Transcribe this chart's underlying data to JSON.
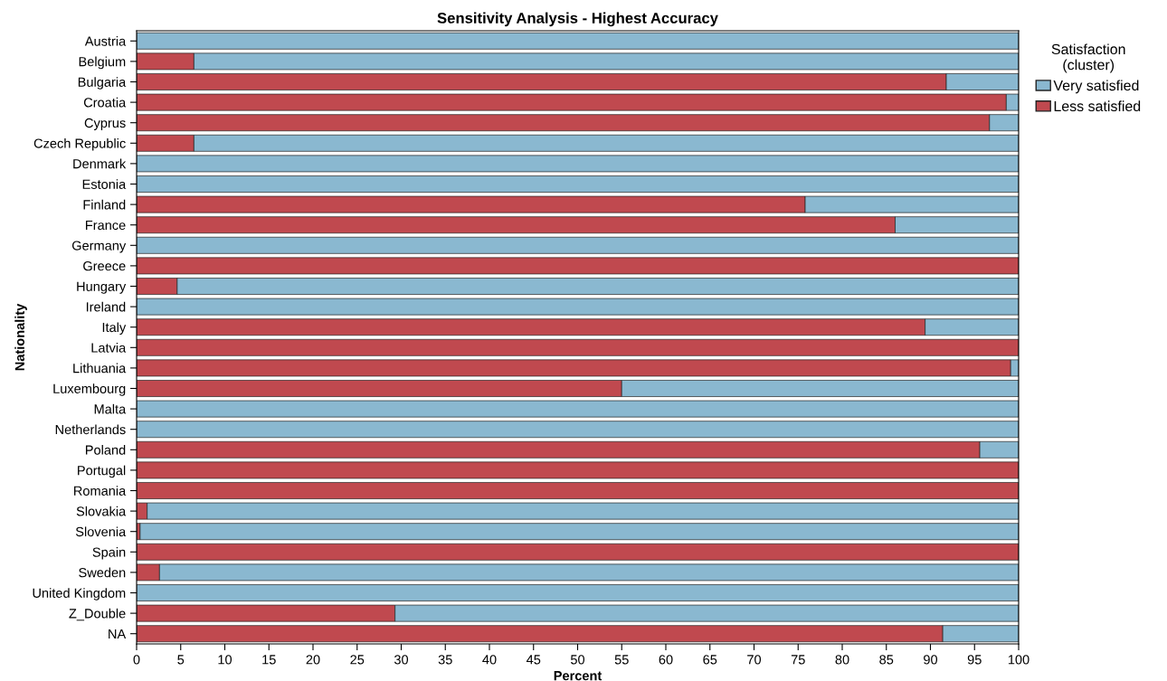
{
  "chart_data": {
    "type": "bar",
    "orientation": "horizontal",
    "stacked": true,
    "title": "Sensitivity Analysis - Highest Accuracy",
    "xlabel": "Percent",
    "ylabel": "Nationality",
    "legend_title": "Satisfaction\n(cluster)",
    "legend": "top right",
    "grid": false,
    "categories": [
      "Austria",
      "Belgium",
      "Bulgaria",
      "Croatia",
      "Cyprus",
      "Czech Republic",
      "Denmark",
      "Estonia",
      "Finland",
      "France",
      "Germany",
      "Greece",
      "Hungary",
      "Ireland",
      "Italy",
      "Latvia",
      "Lithuania",
      "Luxembourg",
      "Malta",
      "Netherlands",
      "Poland",
      "Portugal",
      "Romania",
      "Slovakia",
      "Slovenia",
      "Spain",
      "Sweden",
      "United Kingdom",
      "Z_Double",
      "NA"
    ],
    "series": [
      {
        "name": "Less satisfied",
        "color": "#c0494f",
        "values": [
          0,
          6.5,
          91.8,
          98.6,
          96.7,
          6.5,
          0,
          0,
          75.8,
          86.0,
          0,
          100,
          4.6,
          0,
          89.4,
          100,
          99.1,
          55.0,
          0,
          0,
          95.6,
          100,
          100,
          1.2,
          0.4,
          100,
          2.6,
          0,
          29.3,
          91.4
        ]
      },
      {
        "name": "Very satisfied",
        "color": "#8ab8d0",
        "values": [
          100,
          93.5,
          8.2,
          1.4,
          3.3,
          93.5,
          100,
          100,
          24.2,
          14.0,
          100,
          0,
          95.4,
          100,
          10.6,
          0,
          0.9,
          45.0,
          100,
          100,
          4.4,
          0,
          0,
          98.8,
          99.6,
          0,
          97.4,
          100,
          70.7,
          8.6
        ]
      }
    ],
    "xlim": [
      0,
      100
    ],
    "xticks": [
      0,
      5,
      10,
      15,
      20,
      25,
      30,
      35,
      40,
      45,
      50,
      55,
      60,
      65,
      70,
      75,
      80,
      85,
      90,
      95,
      100
    ]
  }
}
